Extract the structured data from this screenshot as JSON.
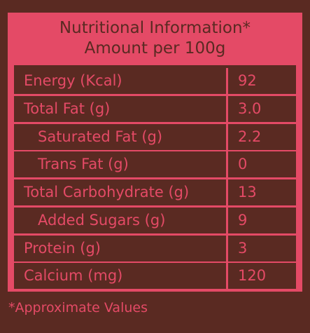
{
  "header": {
    "title": "Nutritional Information*",
    "subtitle": "Amount per 100g"
  },
  "rows": [
    {
      "label": "Energy  (Kcal)",
      "value": "92",
      "indent": false
    },
    {
      "label": "Total Fat (g)",
      "value": "3.0",
      "indent": false
    },
    {
      "label": "Saturated Fat (g)",
      "value": "2.2",
      "indent": true
    },
    {
      "label": "Trans Fat (g)",
      "value": "0",
      "indent": true
    },
    {
      "label": "Total Carbohydrate (g)",
      "value": "13",
      "indent": false
    },
    {
      "label": "Added Sugars (g)",
      "value": "9",
      "indent": true
    },
    {
      "label": "Protein (g)",
      "value": "3",
      "indent": false
    },
    {
      "label": "Calcium (mg)",
      "value": "120",
      "indent": false
    }
  ],
  "footnote": "*Approximate Values",
  "colors": {
    "background": "#5a2a22",
    "accent": "#e44a66"
  }
}
